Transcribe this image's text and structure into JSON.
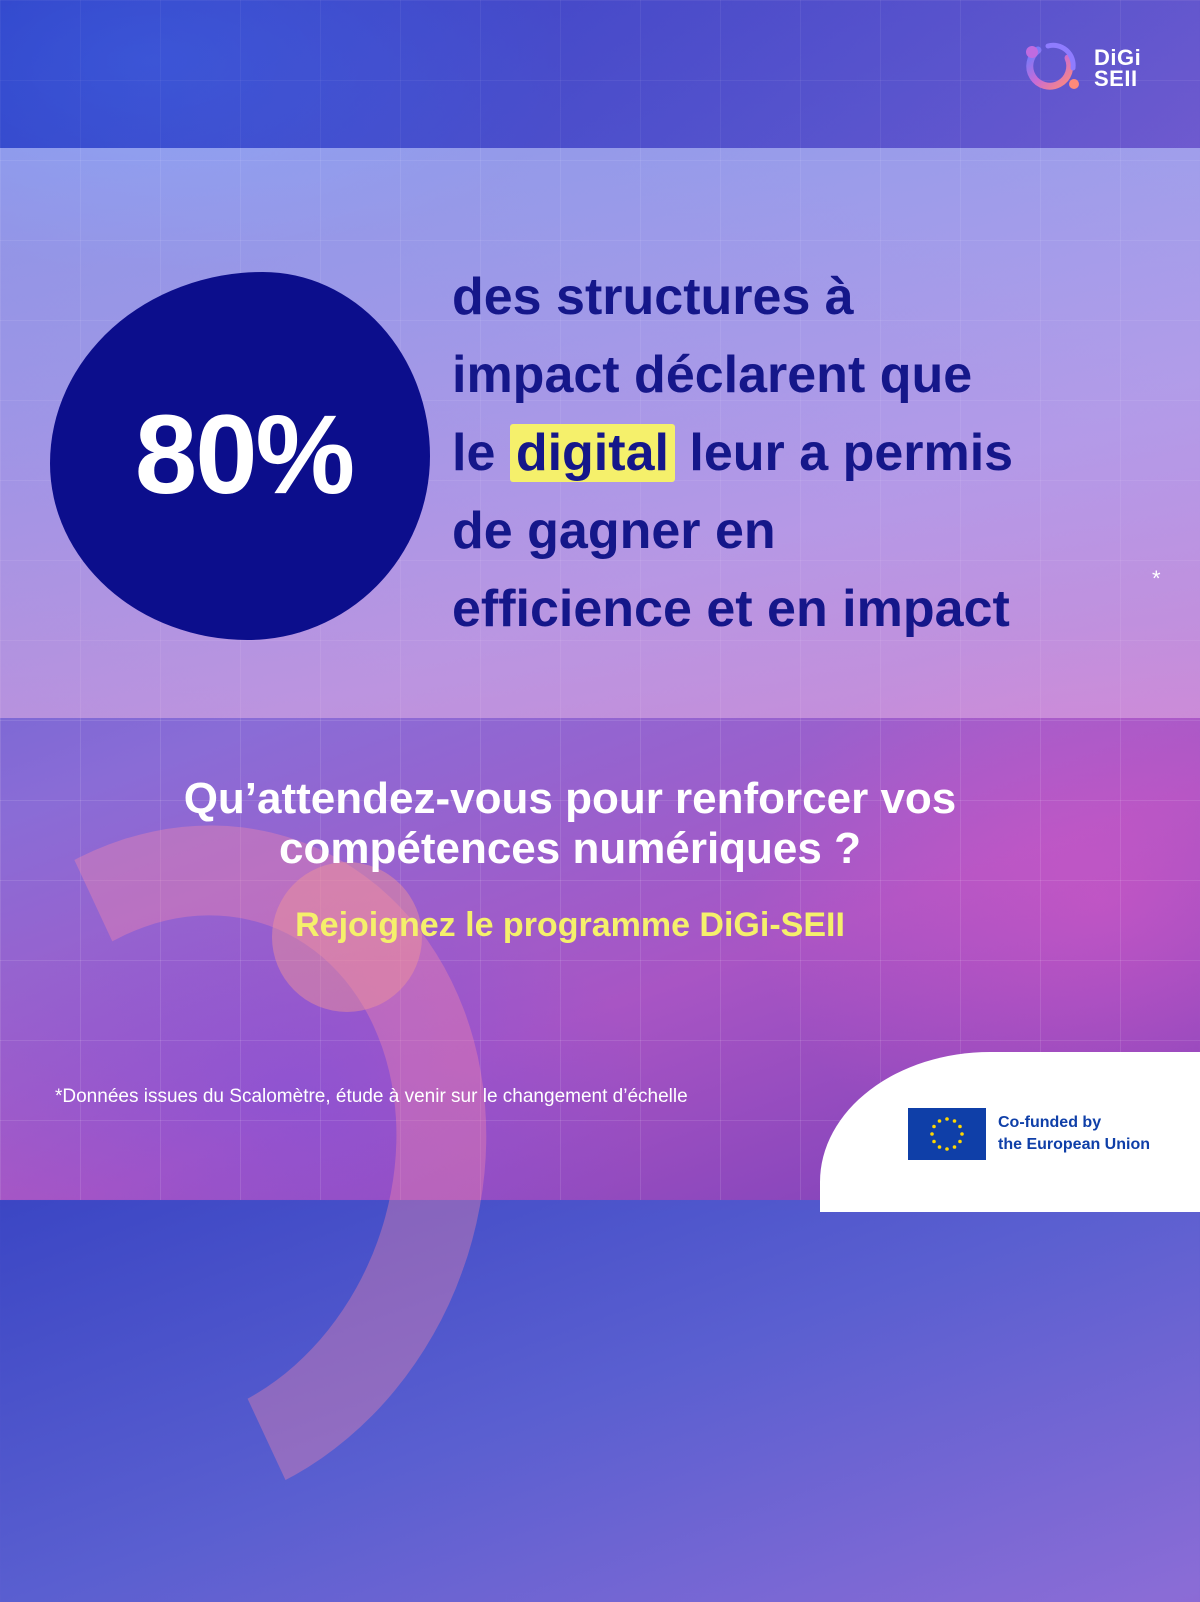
{
  "logo": {
    "line1": "DiGi",
    "line2": "SEII"
  },
  "stat": {
    "value": "80%"
  },
  "statement": {
    "line1": "des structures à",
    "line2": "impact déclarent que",
    "line3_before": "le",
    "line3_highlight": "digital",
    "line3_after": "leur a permis",
    "line4": "de gagner en",
    "line5": "efficience et en impact",
    "asterisk": "*"
  },
  "question": {
    "line1": "Qu’attendez-vous pour renforcer vos",
    "line2": "compétences numériques ?"
  },
  "cta": "Rejoignez le programme DiGi-SEII",
  "footnote": "*Données issues du Scalomètre, étude à venir sur le changement d’échelle",
  "eu": {
    "line1": "Co-funded by",
    "line2": "the European Union",
    "flag_color": "#0f3fa8",
    "star_color": "#ffd700"
  },
  "colors": {
    "navy": "#0c0e8c",
    "highlight_yellow": "#f5f06b",
    "statement_text": "#15178a"
  }
}
